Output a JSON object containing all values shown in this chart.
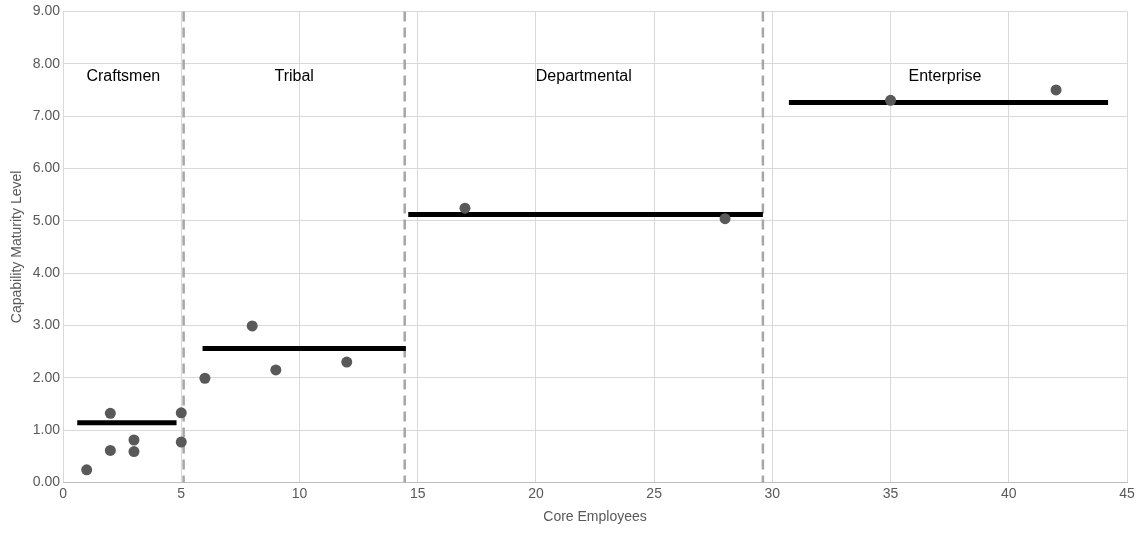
{
  "chart_data": {
    "type": "scatter",
    "xlabel": "Core Employees",
    "ylabel": "Capability Maturity Level",
    "xlim": [
      0,
      45
    ],
    "xticks": [
      0,
      5,
      10,
      15,
      20,
      25,
      30,
      35,
      40,
      45
    ],
    "ylim": [
      0,
      9
    ],
    "yticks": [
      {
        "value": 0,
        "label": "0.00"
      },
      {
        "value": 1,
        "label": "1.00"
      },
      {
        "value": 2,
        "label": "2.00"
      },
      {
        "value": 3,
        "label": "3.00"
      },
      {
        "value": 4,
        "label": "4.00"
      },
      {
        "value": 5,
        "label": "5.00"
      },
      {
        "value": 6,
        "label": "6.00"
      },
      {
        "value": 7,
        "label": "7.00"
      },
      {
        "value": 8,
        "label": "8.00"
      },
      {
        "value": 9,
        "label": "9.00"
      }
    ],
    "grid": true,
    "legend": false,
    "series": [
      {
        "color": "#595959",
        "marker": "circle",
        "x": [
          1,
          2,
          2,
          3,
          3,
          5,
          5,
          6,
          8,
          9,
          12,
          17,
          28,
          35,
          42
        ],
        "values": [
          0.24,
          1.32,
          0.61,
          0.81,
          0.59,
          1.33,
          0.77,
          1.99,
          2.99,
          2.15,
          2.3,
          5.24,
          5.04,
          7.3,
          7.5
        ]
      },
      {
        "type": "line",
        "color": "#000000",
        "marker": "none",
        "x": [
          0.6,
          4.8
        ],
        "values": [
          1.14,
          1.14
        ]
      },
      {
        "type": "line",
        "color": "#000000",
        "marker": "none",
        "x": [
          5.9,
          14.5
        ],
        "values": [
          2.56,
          2.56
        ]
      },
      {
        "type": "line",
        "color": "#000000",
        "marker": "none",
        "x": [
          14.6,
          29.6
        ],
        "values": [
          5.12,
          5.12
        ]
      },
      {
        "type": "line",
        "color": "#000000",
        "marker": "none",
        "x": [
          30.7,
          44.2
        ],
        "values": [
          7.26,
          7.26
        ]
      }
    ],
    "ref_lines": [
      {
        "axis": "x",
        "value": 5.1,
        "color": "#a6a6a6",
        "line_style": "dashed"
      },
      {
        "axis": "x",
        "value": 14.45,
        "color": "#a6a6a6",
        "line_style": "dashed"
      },
      {
        "axis": "x",
        "value": 29.6,
        "color": "#a6a6a6",
        "line_style": "dashed"
      }
    ],
    "annotations": [
      "Craftsmen",
      "Tribal",
      "Departmental",
      "Enterprise"
    ]
  }
}
